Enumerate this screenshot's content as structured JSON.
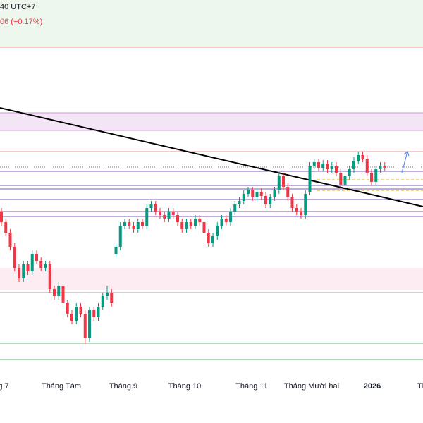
{
  "header": {
    "time_text": "40 UTC+7",
    "change_text": "06 (−0.17%)"
  },
  "chart_data": {
    "type": "candlestick",
    "x_labels": [
      "g 7",
      "Tháng Tám",
      "Tháng 9",
      "Tháng 10",
      "Tháng 11",
      "Tháng Mười hai",
      "2026",
      "Th"
    ],
    "up_color": "#089981",
    "down_color": "#f23645",
    "ylim": [
      0,
      600
    ],
    "candles": [
      [
        300,
        305,
        280,
        285
      ],
      [
        285,
        290,
        265,
        270
      ],
      [
        270,
        275,
        245,
        250
      ],
      [
        250,
        255,
        215,
        220
      ],
      [
        220,
        225,
        200,
        205
      ],
      [
        205,
        230,
        200,
        225
      ],
      [
        225,
        230,
        210,
        215
      ],
      [
        215,
        245,
        210,
        240
      ],
      [
        240,
        245,
        225,
        230
      ],
      [
        230,
        235,
        215,
        220
      ],
      [
        220,
        230,
        215,
        225
      ],
      [
        225,
        230,
        185,
        190
      ],
      [
        190,
        195,
        175,
        180
      ],
      [
        180,
        200,
        175,
        195
      ],
      [
        195,
        200,
        165,
        170
      ],
      [
        170,
        175,
        150,
        155
      ],
      [
        155,
        160,
        140,
        145
      ],
      [
        145,
        170,
        140,
        165
      ],
      [
        165,
        170,
        150,
        155
      ],
      [
        155,
        160,
        112,
        120
      ],
      [
        120,
        165,
        115,
        160
      ],
      [
        160,
        165,
        145,
        150
      ],
      [
        150,
        170,
        145,
        165
      ],
      [
        165,
        185,
        160,
        180
      ],
      [
        180,
        195,
        175,
        185
      ],
      [
        185,
        190,
        165,
        170
      ],
      [
        240,
        255,
        235,
        250
      ],
      [
        250,
        285,
        245,
        280
      ],
      [
        280,
        290,
        275,
        285
      ],
      [
        285,
        290,
        275,
        280
      ],
      [
        280,
        285,
        270,
        275
      ],
      [
        275,
        290,
        270,
        285
      ],
      [
        285,
        290,
        275,
        280
      ],
      [
        280,
        310,
        275,
        305
      ],
      [
        305,
        315,
        300,
        310
      ],
      [
        310,
        315,
        295,
        300
      ],
      [
        300,
        305,
        290,
        295
      ],
      [
        295,
        300,
        285,
        290
      ],
      [
        290,
        305,
        285,
        300
      ],
      [
        300,
        305,
        290,
        295
      ],
      [
        295,
        300,
        280,
        285
      ],
      [
        285,
        290,
        270,
        275
      ],
      [
        275,
        290,
        270,
        285
      ],
      [
        285,
        290,
        275,
        280
      ],
      [
        280,
        295,
        275,
        290
      ],
      [
        290,
        295,
        280,
        285
      ],
      [
        285,
        290,
        265,
        270
      ],
      [
        270,
        275,
        250,
        255
      ],
      [
        255,
        270,
        250,
        265
      ],
      [
        265,
        285,
        260,
        280
      ],
      [
        280,
        295,
        275,
        290
      ],
      [
        290,
        295,
        280,
        285
      ],
      [
        285,
        305,
        280,
        300
      ],
      [
        300,
        315,
        295,
        310
      ],
      [
        310,
        320,
        305,
        315
      ],
      [
        315,
        330,
        310,
        325
      ],
      [
        325,
        335,
        320,
        330
      ],
      [
        330,
        335,
        315,
        320
      ],
      [
        320,
        333,
        315,
        328
      ],
      [
        328,
        333,
        317,
        322
      ],
      [
        322,
        327,
        305,
        310
      ],
      [
        310,
        325,
        305,
        320
      ],
      [
        320,
        335,
        315,
        330
      ],
      [
        330,
        355,
        325,
        350
      ],
      [
        350,
        355,
        330,
        335
      ],
      [
        335,
        340,
        315,
        320
      ],
      [
        320,
        325,
        300,
        305
      ],
      [
        305,
        310,
        295,
        300
      ],
      [
        300,
        305,
        290,
        295
      ],
      [
        295,
        330,
        290,
        325
      ],
      [
        328,
        370,
        323,
        365
      ],
      [
        365,
        375,
        360,
        370
      ],
      [
        370,
        375,
        357,
        362
      ],
      [
        362,
        373,
        357,
        368
      ],
      [
        368,
        373,
        355,
        360
      ],
      [
        360,
        370,
        355,
        365
      ],
      [
        365,
        370,
        350,
        355
      ],
      [
        355,
        360,
        333,
        338
      ],
      [
        338,
        355,
        333,
        350
      ],
      [
        350,
        365,
        345,
        360
      ],
      [
        360,
        377,
        355,
        372
      ],
      [
        372,
        385,
        367,
        380
      ],
      [
        380,
        385,
        370,
        375
      ],
      [
        375,
        380,
        350,
        355
      ],
      [
        355,
        360,
        337,
        342
      ],
      [
        342,
        365,
        337,
        360
      ],
      [
        360,
        370,
        355,
        365
      ],
      [
        365,
        370,
        357,
        362
      ]
    ]
  }
}
